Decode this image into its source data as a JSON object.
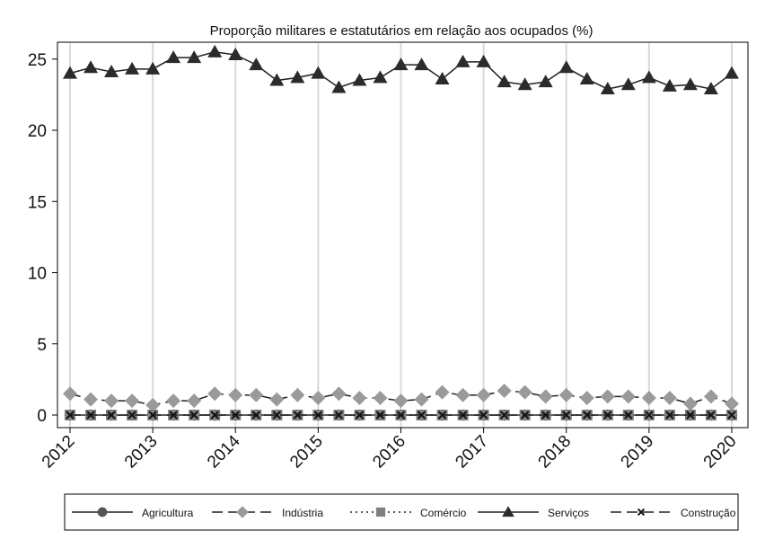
{
  "chart_data": {
    "type": "line",
    "title": "Proporção militares e estatutários em relação aos ocupados (%)",
    "xlabel": "",
    "ylabel": "",
    "ylim": [
      0,
      25
    ],
    "yticks": [
      0,
      5,
      10,
      15,
      20,
      25
    ],
    "xticks": [
      "2012",
      "2013",
      "2014",
      "2015",
      "2016",
      "2017",
      "2018",
      "2019",
      "2020"
    ],
    "x_quarters": [
      "2012Q1",
      "2012Q2",
      "2012Q3",
      "2012Q4",
      "2013Q1",
      "2013Q2",
      "2013Q3",
      "2013Q4",
      "2014Q1",
      "2014Q2",
      "2014Q3",
      "2014Q4",
      "2015Q1",
      "2015Q2",
      "2015Q3",
      "2015Q4",
      "2016Q1",
      "2016Q2",
      "2016Q3",
      "2016Q4",
      "2017Q1",
      "2017Q2",
      "2017Q3",
      "2017Q4",
      "2018Q1",
      "2018Q2",
      "2018Q3",
      "2018Q4",
      "2019Q1",
      "2019Q2",
      "2019Q3",
      "2019Q4",
      "2020Q1"
    ],
    "grid": "vertical lines at year ticks",
    "legend_position": "bottom",
    "series": [
      {
        "name": "Agricultura",
        "marker": "circle",
        "color": "#555555",
        "dash": "solid",
        "values": [
          0,
          0,
          0,
          0,
          0,
          0,
          0,
          0,
          0,
          0,
          0,
          0,
          0,
          0,
          0,
          0,
          0,
          0,
          0,
          0,
          0,
          0,
          0,
          0,
          0,
          0,
          0,
          0,
          0,
          0,
          0,
          0,
          0
        ]
      },
      {
        "name": "Indústria",
        "marker": "diamond",
        "color": "#9a9a9a",
        "dash": "long-dash",
        "values": [
          1.5,
          1.1,
          1.0,
          1.0,
          0.7,
          1.0,
          1.0,
          1.5,
          1.4,
          1.4,
          1.1,
          1.4,
          1.2,
          1.5,
          1.2,
          1.2,
          1.0,
          1.1,
          1.6,
          1.4,
          1.4,
          1.7,
          1.6,
          1.3,
          1.4,
          1.2,
          1.3,
          1.3,
          1.2,
          1.2,
          0.8,
          1.3,
          0.8
        ]
      },
      {
        "name": "Comércio",
        "marker": "square",
        "color": "#808080",
        "dash": "dotted",
        "values": [
          0,
          0,
          0,
          0,
          0,
          0,
          0,
          0,
          0,
          0,
          0,
          0,
          0,
          0,
          0,
          0,
          0,
          0,
          0,
          0,
          0,
          0,
          0,
          0,
          0,
          0,
          0,
          0,
          0,
          0,
          0,
          0,
          0
        ]
      },
      {
        "name": "Serviços",
        "marker": "triangle",
        "color": "#2b2b2b",
        "dash": "solid",
        "values": [
          24.0,
          24.4,
          24.1,
          24.3,
          24.3,
          25.1,
          25.1,
          25.5,
          25.3,
          24.6,
          23.5,
          23.7,
          24.0,
          23.0,
          23.5,
          23.7,
          24.6,
          24.6,
          23.6,
          24.8,
          24.8,
          23.4,
          23.2,
          23.4,
          24.4,
          23.6,
          22.9,
          23.2,
          23.7,
          23.1,
          23.2,
          22.9,
          24.0
        ]
      },
      {
        "name": "Construção",
        "marker": "x",
        "color": "#111111",
        "dash": "long-dash",
        "values": [
          0,
          0,
          0,
          0,
          0,
          0,
          0,
          0,
          0,
          0,
          0,
          0,
          0,
          0,
          0,
          0,
          0,
          0,
          0,
          0,
          0,
          0,
          0,
          0,
          0,
          0,
          0,
          0,
          0,
          0,
          0,
          0,
          0
        ]
      }
    ]
  }
}
